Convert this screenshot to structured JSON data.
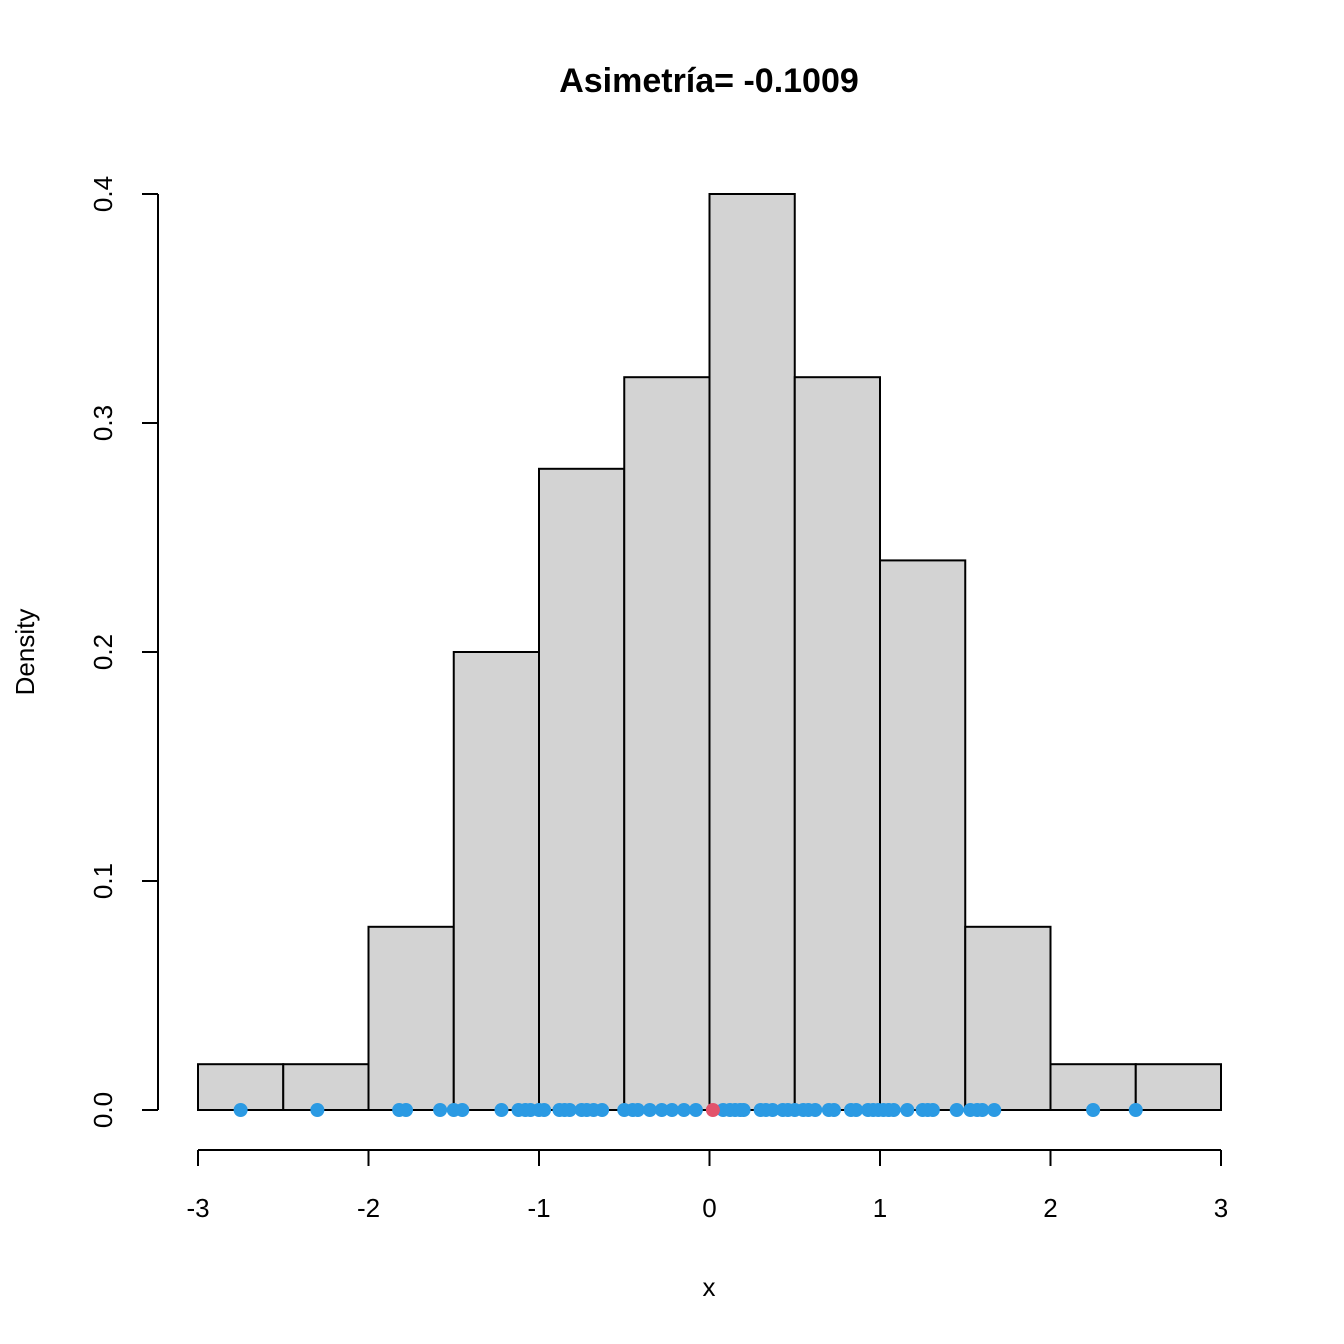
{
  "chart_data": {
    "type": "bar",
    "title": "Asimetría= -0.1009",
    "xlabel": "x",
    "ylabel": "Density",
    "xlim": [
      -3,
      3
    ],
    "ylim": [
      0,
      0.4
    ],
    "x_ticks": [
      "-3",
      "-2",
      "-1",
      "0",
      "1",
      "2",
      "3"
    ],
    "y_ticks": [
      "0.0",
      "0.1",
      "0.2",
      "0.3",
      "0.4"
    ],
    "bin_edges": [
      -3,
      -2.5,
      -2,
      -1.5,
      -1,
      -0.5,
      0,
      0.5,
      1,
      1.5,
      2,
      2.5,
      3
    ],
    "densities": [
      0.02,
      0.02,
      0.08,
      0.2,
      0.28,
      0.32,
      0.4,
      0.32,
      0.24,
      0.08,
      0.02,
      0.02
    ],
    "bar_color": "#d3d3d3",
    "rug_points": [
      -2.75,
      -2.3,
      -1.82,
      -1.78,
      -1.58,
      -1.5,
      -1.45,
      -1.22,
      -1.12,
      -1.08,
      -1.05,
      -1.0,
      -0.97,
      -0.88,
      -0.85,
      -0.82,
      -0.75,
      -0.72,
      -0.68,
      -0.63,
      -0.5,
      -0.45,
      -0.42,
      -0.35,
      -0.28,
      -0.22,
      -0.15,
      -0.08,
      0.08,
      0.12,
      0.15,
      0.18,
      0.2,
      0.3,
      0.33,
      0.37,
      0.43,
      0.46,
      0.5,
      0.55,
      0.58,
      0.62,
      0.7,
      0.73,
      0.83,
      0.86,
      0.93,
      0.96,
      0.99,
      1.02,
      1.05,
      1.08,
      1.16,
      1.25,
      1.28,
      1.31,
      1.45,
      1.53,
      1.57,
      1.6,
      1.67,
      2.25,
      2.5
    ],
    "rug_color": "#2b9ae3",
    "highlight_point": 0.02,
    "highlight_color": "#e2536b"
  }
}
